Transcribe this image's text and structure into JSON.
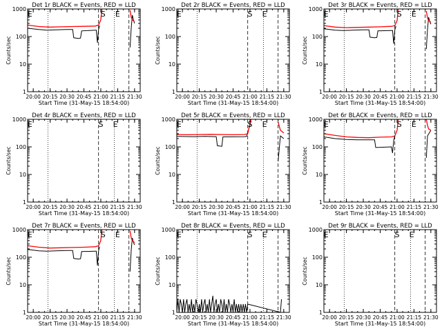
{
  "colors": {
    "events": "#000000",
    "lld": "#ff0000",
    "axis": "#000000"
  },
  "chart_data": [
    {
      "type": "line",
      "title": "Det 1r BLACK = Events, RED = LLD",
      "xlabel": "Start Time (31-May-15 18:54:00)",
      "ylabel": "Counts/sec",
      "yscale": "log",
      "xlim": [
        "19:55",
        "21:35"
      ],
      "ylim": [
        1,
        1000
      ],
      "x_ticks": [
        "20:00",
        "20:15",
        "20:30",
        "20:45",
        "21:00",
        "21:15",
        "21:30"
      ],
      "y_ticks": [
        "1",
        "10",
        "100",
        "1000"
      ],
      "annotations": [
        {
          "text": "E",
          "x": "19:57"
        },
        {
          "text": "S",
          "x": "21:02"
        },
        {
          "text": "E",
          "x": "21:15"
        }
      ],
      "vlines": [
        {
          "x": "20:13",
          "style": "dotted"
        },
        {
          "x": "20:58",
          "style": "dashed"
        },
        {
          "x": "21:12",
          "style": "dotted"
        },
        {
          "x": "21:25",
          "style": "dashed"
        }
      ],
      "series": [
        {
          "color": "black",
          "x": [
            "19:55",
            "20:05",
            "20:12",
            "20:20",
            "20:30",
            "20:35",
            "20:36",
            "20:40",
            "20:42",
            "20:43",
            "20:55",
            "20:56",
            "20:57",
            "20:58",
            "20:59",
            "21:25",
            "21:26",
            "21:27",
            "21:28",
            "21:29",
            "21:30"
          ],
          "y": [
            200,
            180,
            170,
            175,
            180,
            180,
            90,
            85,
            88,
            160,
            170,
            170,
            60,
            180,
            250,
            null,
            40,
            200,
            600,
            400,
            300
          ]
        },
        {
          "color": "red",
          "x": [
            "19:55",
            "20:05",
            "20:15",
            "20:25",
            "20:35",
            "20:45",
            "20:55",
            "20:58",
            "21:00",
            "21:01",
            "21:25",
            "21:26",
            "21:27",
            "21:28",
            "21:30"
          ],
          "y": [
            260,
            230,
            220,
            225,
            230,
            235,
            240,
            260,
            400,
            1000,
            null,
            900,
            500,
            400,
            350
          ]
        }
      ]
    },
    {
      "type": "line",
      "title": "Det 2r BLACK = Events, RED = LLD",
      "xlabel": "Start Time (31-May-15 18:54:00)",
      "ylabel": "Counts/sec",
      "yscale": "log",
      "xlim": [
        "19:55",
        "21:35"
      ],
      "ylim": [
        1,
        1000
      ],
      "x_ticks": [
        "20:00",
        "20:15",
        "20:30",
        "20:45",
        "21:00",
        "21:15",
        "21:30"
      ],
      "y_ticks": [
        "1",
        "10",
        "100",
        "1000"
      ],
      "annotations": [
        {
          "text": "E",
          "x": "19:57"
        },
        {
          "text": "S",
          "x": "21:00"
        },
        {
          "text": "E",
          "x": "21:13"
        }
      ],
      "vlines": [
        {
          "x": "20:13",
          "style": "dotted"
        },
        {
          "x": "20:58",
          "style": "dashed"
        },
        {
          "x": "21:12",
          "style": "dotted"
        },
        {
          "x": "21:25",
          "style": "dashed"
        }
      ],
      "series": []
    },
    {
      "type": "line",
      "title": "Det 3r BLACK = Events, RED = LLD",
      "xlabel": "Start Time (31-May-15 18:54:00)",
      "ylabel": "Counts/sec",
      "yscale": "log",
      "xlim": [
        "19:55",
        "21:35"
      ],
      "ylim": [
        1,
        1000
      ],
      "x_ticks": [
        "20:00",
        "20:15",
        "20:30",
        "20:45",
        "21:00",
        "21:15",
        "21:30"
      ],
      "y_ticks": [
        "1",
        "10",
        "100",
        "1000"
      ],
      "annotations": [
        {
          "text": "E",
          "x": "19:57"
        },
        {
          "text": "S",
          "x": "21:02"
        },
        {
          "text": "E",
          "x": "21:15"
        }
      ],
      "vlines": [
        {
          "x": "20:13",
          "style": "dotted"
        },
        {
          "x": "20:58",
          "style": "dashed"
        },
        {
          "x": "21:12",
          "style": "dotted"
        },
        {
          "x": "21:25",
          "style": "dashed"
        }
      ],
      "series": [
        {
          "color": "black",
          "x": [
            "19:55",
            "20:05",
            "20:12",
            "20:20",
            "20:30",
            "20:35",
            "20:36",
            "20:40",
            "20:42",
            "20:43",
            "20:55",
            "20:56",
            "20:57",
            "20:58",
            "20:59",
            "21:25",
            "21:26",
            "21:27",
            "21:28",
            "21:29",
            "21:30"
          ],
          "y": [
            190,
            170,
            165,
            170,
            175,
            175,
            95,
            90,
            92,
            160,
            165,
            165,
            55,
            175,
            240,
            null,
            35,
            180,
            500,
            350,
            280
          ]
        },
        {
          "color": "red",
          "x": [
            "19:55",
            "20:05",
            "20:15",
            "20:25",
            "20:35",
            "20:45",
            "20:55",
            "20:58",
            "21:00",
            "21:01",
            "21:25",
            "21:26",
            "21:27",
            "21:28",
            "21:30"
          ],
          "y": [
            250,
            220,
            210,
            215,
            220,
            225,
            235,
            250,
            380,
            1000,
            null,
            850,
            480,
            380,
            330
          ]
        }
      ]
    },
    {
      "type": "line",
      "title": "Det 4r BLACK = Events, RED = LLD",
      "xlabel": "Start Time (31-May-15 18:54:00)",
      "ylabel": "Counts/sec",
      "yscale": "log",
      "xlim": [
        "19:55",
        "21:35"
      ],
      "ylim": [
        1,
        1000
      ],
      "x_ticks": [
        "20:00",
        "20:15",
        "20:30",
        "20:45",
        "21:00",
        "21:15",
        "21:30"
      ],
      "y_ticks": [
        "1",
        "10",
        "100",
        "1000"
      ],
      "annotations": [
        {
          "text": "E",
          "x": "19:57"
        },
        {
          "text": "S",
          "x": "21:00"
        },
        {
          "text": "E",
          "x": "21:13"
        }
      ],
      "vlines": [
        {
          "x": "20:13",
          "style": "dotted"
        },
        {
          "x": "20:58",
          "style": "dashed"
        },
        {
          "x": "21:12",
          "style": "dotted"
        },
        {
          "x": "21:25",
          "style": "dashed"
        }
      ],
      "series": []
    },
    {
      "type": "line",
      "title": "Det 5r BLACK = Events, RED = LLD",
      "xlabel": "Start Time (31-May-15 18:54:00)",
      "ylabel": "Counts/sec",
      "yscale": "log",
      "xlim": [
        "19:55",
        "21:35"
      ],
      "ylim": [
        1,
        1000
      ],
      "x_ticks": [
        "20:00",
        "20:15",
        "20:30",
        "20:45",
        "21:00",
        "21:15",
        "21:30"
      ],
      "y_ticks": [
        "1",
        "10",
        "100",
        "1000"
      ],
      "annotations": [
        {
          "text": "E",
          "x": "19:57"
        },
        {
          "text": "S",
          "x": "21:00"
        },
        {
          "text": "E",
          "x": "21:13"
        }
      ],
      "vlines": [
        {
          "x": "20:13",
          "style": "dotted"
        },
        {
          "x": "20:58",
          "style": "dashed"
        },
        {
          "x": "21:12",
          "style": "dotted"
        },
        {
          "x": "21:25",
          "style": "dashed"
        }
      ],
      "series": [
        {
          "color": "black",
          "x": [
            "19:55",
            "20:10",
            "20:20",
            "20:30",
            "20:31",
            "20:35",
            "20:36",
            "20:55",
            "20:57",
            "21:00",
            "21:01",
            "21:24",
            "21:25",
            "21:27",
            "21:30"
          ],
          "y": [
            240,
            235,
            240,
            235,
            110,
            105,
            230,
            235,
            240,
            600,
            1000,
            null,
            30,
            250,
            200
          ]
        },
        {
          "color": "red",
          "x": [
            "19:55",
            "20:05",
            "20:15",
            "20:25",
            "20:35",
            "20:45",
            "20:55",
            "20:58",
            "21:00",
            "21:01",
            "21:24",
            "21:25",
            "21:27",
            "21:30"
          ],
          "y": [
            280,
            275,
            280,
            285,
            280,
            275,
            280,
            300,
            700,
            1000,
            null,
            800,
            400,
            320
          ]
        }
      ]
    },
    {
      "type": "line",
      "title": "Det 6r BLACK = Events, RED = LLD",
      "xlabel": "Start Time (31-May-15 18:54:00)",
      "ylabel": "Counts/sec",
      "yscale": "log",
      "xlim": [
        "19:55",
        "21:35"
      ],
      "ylim": [
        1,
        1000
      ],
      "x_ticks": [
        "20:00",
        "20:15",
        "20:30",
        "20:45",
        "21:00",
        "21:15",
        "21:30"
      ],
      "y_ticks": [
        "1",
        "10",
        "100",
        "1000"
      ],
      "annotations": [
        {
          "text": "E",
          "x": "19:57"
        },
        {
          "text": "S",
          "x": "21:02"
        },
        {
          "text": "E",
          "x": "21:15"
        }
      ],
      "vlines": [
        {
          "x": "20:13",
          "style": "dotted"
        },
        {
          "x": "20:58",
          "style": "dashed"
        },
        {
          "x": "21:12",
          "style": "dotted"
        },
        {
          "x": "21:25",
          "style": "dashed"
        }
      ],
      "series": [
        {
          "color": "black",
          "x": [
            "19:55",
            "20:05",
            "20:15",
            "20:25",
            "20:35",
            "20:40",
            "20:41",
            "20:55",
            "20:56",
            "20:57",
            "20:58",
            "21:25",
            "21:26",
            "21:27",
            "21:30"
          ],
          "y": [
            230,
            200,
            185,
            180,
            180,
            180,
            95,
            100,
            60,
            175,
            250,
            null,
            40,
            250,
            400
          ]
        },
        {
          "color": "red",
          "x": [
            "19:55",
            "20:05",
            "20:15",
            "20:25",
            "20:35",
            "20:45",
            "20:55",
            "20:58",
            "21:00",
            "21:01",
            "21:25",
            "21:26",
            "21:27",
            "21:28",
            "21:30"
          ],
          "y": [
            300,
            260,
            230,
            220,
            215,
            225,
            230,
            250,
            400,
            1000,
            null,
            1000,
            600,
            450,
            400
          ]
        }
      ]
    },
    {
      "type": "line",
      "title": "Det 7r BLACK = Events, RED = LLD",
      "xlabel": "Start Time (31-May-15 18:54:00)",
      "ylabel": "Counts/sec",
      "yscale": "log",
      "xlim": [
        "19:55",
        "21:35"
      ],
      "ylim": [
        1,
        1000
      ],
      "x_ticks": [
        "20:00",
        "20:15",
        "20:30",
        "20:45",
        "21:00",
        "21:15",
        "21:30"
      ],
      "y_ticks": [
        "1",
        "10",
        "100",
        "1000"
      ],
      "annotations": [
        {
          "text": "E",
          "x": "19:57"
        },
        {
          "text": "S",
          "x": "21:02"
        },
        {
          "text": "E",
          "x": "21:15"
        }
      ],
      "vlines": [
        {
          "x": "20:13",
          "style": "dotted"
        },
        {
          "x": "20:58",
          "style": "dashed"
        },
        {
          "x": "21:12",
          "style": "dotted"
        },
        {
          "x": "21:25",
          "style": "dashed"
        }
      ],
      "series": [
        {
          "color": "black",
          "x": [
            "19:55",
            "20:05",
            "20:12",
            "20:20",
            "20:30",
            "20:35",
            "20:36",
            "20:40",
            "20:42",
            "20:43",
            "20:55",
            "20:56",
            "20:57",
            "20:58",
            "20:59",
            "21:25",
            "21:26",
            "21:27",
            "21:28",
            "21:29",
            "21:30"
          ],
          "y": [
            190,
            170,
            165,
            170,
            175,
            175,
            90,
            85,
            88,
            160,
            165,
            165,
            50,
            170,
            240,
            null,
            30,
            180,
            500,
            350,
            280
          ]
        },
        {
          "color": "red",
          "x": [
            "19:55",
            "20:05",
            "20:15",
            "20:25",
            "20:35",
            "20:45",
            "20:55",
            "20:58",
            "21:00",
            "21:01",
            "21:25",
            "21:26",
            "21:27",
            "21:28",
            "21:30"
          ],
          "y": [
            260,
            230,
            215,
            220,
            225,
            230,
            240,
            260,
            400,
            1000,
            null,
            900,
            500,
            400,
            340
          ]
        }
      ]
    },
    {
      "type": "line",
      "title": "Det 8r BLACK = Events, RED = LLD",
      "xlabel": "Start Time (31-May-15 18:54:00)",
      "ylabel": "Counts/sec",
      "yscale": "log",
      "xlim": [
        "19:55",
        "21:35"
      ],
      "ylim": [
        1,
        1000
      ],
      "x_ticks": [
        "20:00",
        "20:15",
        "20:30",
        "20:45",
        "21:00",
        "21:15",
        "21:30"
      ],
      "y_ticks": [
        "1",
        "10",
        "100",
        "1000"
      ],
      "annotations": [
        {
          "text": "E",
          "x": "19:57"
        },
        {
          "text": "S",
          "x": "21:00"
        },
        {
          "text": "E",
          "x": "21:13"
        }
      ],
      "vlines": [
        {
          "x": "20:13",
          "style": "dotted"
        },
        {
          "x": "20:58",
          "style": "dashed"
        },
        {
          "x": "21:12",
          "style": "dotted"
        },
        {
          "x": "21:25",
          "style": "dashed"
        }
      ],
      "series": [
        {
          "color": "black",
          "x": [
            "19:55",
            "19:56",
            "19:57",
            "19:58",
            "19:59",
            "20:00",
            "20:01",
            "20:02",
            "20:03",
            "20:04",
            "20:05",
            "20:06",
            "20:07",
            "20:08",
            "20:09",
            "20:10",
            "20:11",
            "20:12",
            "20:13",
            "20:14",
            "20:15",
            "20:16",
            "20:17",
            "20:18",
            "20:19",
            "20:20",
            "20:21",
            "20:22",
            "20:23",
            "20:24",
            "20:25",
            "20:26",
            "20:27",
            "20:28",
            "20:29",
            "20:30",
            "20:31",
            "20:32",
            "20:33",
            "20:34",
            "20:35",
            "20:36",
            "20:37",
            "20:38",
            "20:39",
            "20:40",
            "20:41",
            "20:42",
            "20:43",
            "20:44",
            "20:45",
            "20:46",
            "20:47",
            "20:48",
            "20:49",
            "20:50",
            "20:51",
            "20:52",
            "20:53",
            "20:54",
            "20:55",
            "20:56",
            "20:57",
            "20:58",
            "21:27",
            "21:28"
          ],
          "y": [
            1,
            3,
            1,
            3,
            2,
            1,
            3,
            1,
            2,
            3,
            1,
            2,
            1,
            3,
            1,
            2,
            1,
            3,
            2,
            1,
            2,
            1,
            3,
            1,
            2,
            3,
            1,
            2,
            1,
            3,
            1,
            2,
            4,
            1,
            2,
            3,
            1,
            2,
            1,
            3,
            2,
            1,
            3,
            1,
            2,
            1,
            3,
            2,
            1,
            2,
            1,
            3,
            1,
            2,
            1,
            2,
            1,
            2,
            1,
            2,
            1,
            2,
            1,
            2,
            1,
            3
          ]
        }
      ]
    },
    {
      "type": "line",
      "title": "Det 9r BLACK = Events, RED = LLD",
      "xlabel": "Start Time (31-May-15 18:54:00)",
      "ylabel": "Counts/sec",
      "yscale": "log",
      "xlim": [
        "19:55",
        "21:35"
      ],
      "ylim": [
        1,
        1000
      ],
      "x_ticks": [
        "20:00",
        "20:15",
        "20:30",
        "20:45",
        "21:00",
        "21:15",
        "21:30"
      ],
      "y_ticks": [
        "1",
        "10",
        "100",
        "1000"
      ],
      "annotations": [
        {
          "text": "E",
          "x": "19:57"
        },
        {
          "text": "S",
          "x": "21:00"
        },
        {
          "text": "E",
          "x": "21:13"
        }
      ],
      "vlines": [
        {
          "x": "20:13",
          "style": "dotted"
        },
        {
          "x": "20:58",
          "style": "dashed"
        },
        {
          "x": "21:12",
          "style": "dotted"
        },
        {
          "x": "21:25",
          "style": "dashed"
        }
      ],
      "series": []
    }
  ]
}
